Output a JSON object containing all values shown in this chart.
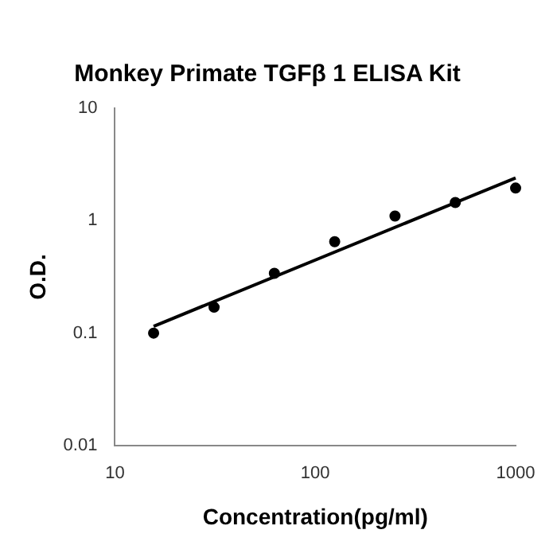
{
  "chart_data": {
    "type": "scatter",
    "title": "Monkey Primate TGFβ 1 ELISA Kit",
    "xlabel": "Concentration(pg/ml)",
    "ylabel": "O.D.",
    "log": "xy",
    "grid": false,
    "legend": false,
    "xlim": [
      10,
      1000
    ],
    "xticks": [
      10,
      100,
      1000
    ],
    "ylim": [
      0.01,
      10
    ],
    "yticks": [
      0.01,
      0.1,
      1,
      10
    ],
    "series": [
      {
        "type": "scatter",
        "color": "#000000",
        "marker": "circle",
        "x": [
          15.6,
          31.25,
          62.5,
          125,
          250,
          500,
          1000
        ],
        "values": [
          0.1,
          0.17,
          0.34,
          0.65,
          1.1,
          1.45,
          1.95
        ]
      },
      {
        "type": "line",
        "color": "#000000",
        "marker": "none",
        "line_style": "solid",
        "x": [
          15.6,
          1000
        ],
        "values": [
          0.115,
          2.4
        ]
      }
    ]
  }
}
